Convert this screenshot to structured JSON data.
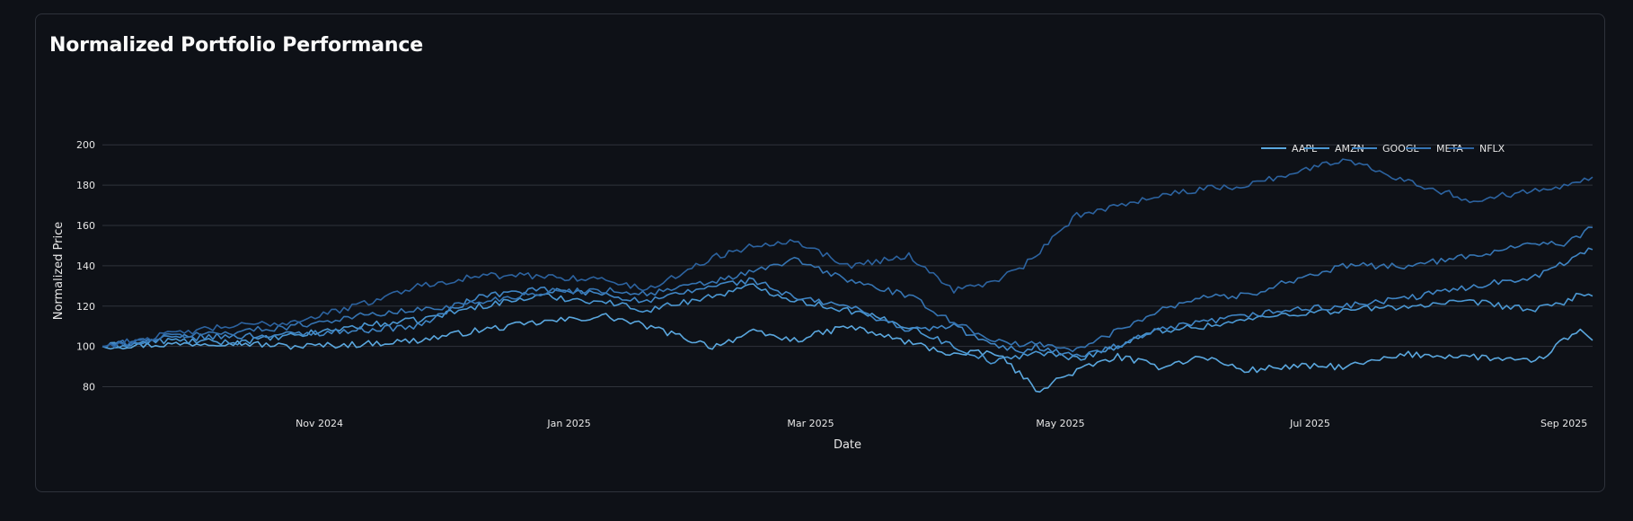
{
  "card": {
    "title": "Normalized Portfolio Performance"
  },
  "chart_data": {
    "type": "line",
    "xlabel": "Date",
    "ylabel": "Normalized Price",
    "x_range": [
      "2024-09-09",
      "2025-09-08"
    ],
    "ylim": [
      70,
      205
    ],
    "y_ticks": [
      80,
      100,
      120,
      140,
      160,
      180,
      200
    ],
    "x_ticks": [
      {
        "date": "2024-11-01",
        "label": "Nov 2024"
      },
      {
        "date": "2025-01-01",
        "label": "Jan 2025"
      },
      {
        "date": "2025-03-01",
        "label": "Mar 2025"
      },
      {
        "date": "2025-05-01",
        "label": "May 2025"
      },
      {
        "date": "2025-07-01",
        "label": "Jul 2025"
      },
      {
        "date": "2025-09-01",
        "label": "Sep 2025"
      }
    ],
    "grid": "horizontal",
    "legend": "top-right",
    "series": [
      {
        "name": "AAPL",
        "color": "#5aa7de",
        "points": [
          [
            "2024-09-09",
            100
          ],
          [
            "2024-09-25",
            101
          ],
          [
            "2024-10-10",
            102
          ],
          [
            "2024-10-25",
            100
          ],
          [
            "2024-11-10",
            101
          ],
          [
            "2024-11-25",
            103
          ],
          [
            "2024-12-10",
            108
          ],
          [
            "2024-12-25",
            112
          ],
          [
            "2025-01-10",
            115
          ],
          [
            "2025-01-20",
            110
          ],
          [
            "2025-02-05",
            100
          ],
          [
            "2025-02-15",
            107
          ],
          [
            "2025-02-25",
            103
          ],
          [
            "2025-03-10",
            110
          ],
          [
            "2025-03-25",
            102
          ],
          [
            "2025-04-05",
            96
          ],
          [
            "2025-04-15",
            97
          ],
          [
            "2025-04-22",
            85
          ],
          [
            "2025-04-25",
            78
          ],
          [
            "2025-05-05",
            88
          ],
          [
            "2025-05-15",
            95
          ],
          [
            "2025-05-25",
            90
          ],
          [
            "2025-06-05",
            95
          ],
          [
            "2025-06-15",
            88
          ],
          [
            "2025-06-25",
            90
          ],
          [
            "2025-07-10",
            90
          ],
          [
            "2025-07-25",
            96
          ],
          [
            "2025-08-10",
            95
          ],
          [
            "2025-08-25",
            92
          ],
          [
            "2025-09-01",
            103
          ],
          [
            "2025-09-05",
            108
          ],
          [
            "2025-09-08",
            103
          ]
        ]
      },
      {
        "name": "AMZN",
        "color": "#4a97d2",
        "points": [
          [
            "2024-09-09",
            100
          ],
          [
            "2024-09-25",
            103
          ],
          [
            "2024-10-10",
            102
          ],
          [
            "2024-10-25",
            105
          ],
          [
            "2024-11-10",
            110
          ],
          [
            "2024-11-25",
            113
          ],
          [
            "2024-12-10",
            120
          ],
          [
            "2024-12-25",
            125
          ],
          [
            "2025-01-10",
            122
          ],
          [
            "2025-01-20",
            118
          ],
          [
            "2025-02-05",
            125
          ],
          [
            "2025-02-15",
            130
          ],
          [
            "2025-02-25",
            123
          ],
          [
            "2025-03-10",
            118
          ],
          [
            "2025-03-25",
            110
          ],
          [
            "2025-04-05",
            100
          ],
          [
            "2025-04-15",
            92
          ],
          [
            "2025-04-22",
            96
          ],
          [
            "2025-04-25",
            97
          ],
          [
            "2025-05-05",
            94
          ],
          [
            "2025-05-15",
            100
          ],
          [
            "2025-05-25",
            108
          ],
          [
            "2025-06-05",
            110
          ],
          [
            "2025-06-15",
            113
          ],
          [
            "2025-06-25",
            116
          ],
          [
            "2025-07-10",
            118
          ],
          [
            "2025-07-25",
            120
          ],
          [
            "2025-08-10",
            122
          ],
          [
            "2025-08-25",
            118
          ],
          [
            "2025-09-01",
            122
          ],
          [
            "2025-09-05",
            126
          ],
          [
            "2025-09-08",
            125
          ]
        ]
      },
      {
        "name": "GOOGL",
        "color": "#3f85c4",
        "points": [
          [
            "2024-09-09",
            100
          ],
          [
            "2024-09-25",
            104
          ],
          [
            "2024-10-10",
            105
          ],
          [
            "2024-10-25",
            106
          ],
          [
            "2024-11-10",
            108
          ],
          [
            "2024-11-25",
            110
          ],
          [
            "2024-12-10",
            125
          ],
          [
            "2024-12-25",
            128
          ],
          [
            "2025-01-10",
            126
          ],
          [
            "2025-01-20",
            122
          ],
          [
            "2025-02-05",
            130
          ],
          [
            "2025-02-15",
            133
          ],
          [
            "2025-02-25",
            124
          ],
          [
            "2025-03-10",
            120
          ],
          [
            "2025-03-25",
            108
          ],
          [
            "2025-04-05",
            110
          ],
          [
            "2025-04-15",
            100
          ],
          [
            "2025-04-22",
            98
          ],
          [
            "2025-04-25",
            100
          ],
          [
            "2025-05-05",
            95
          ],
          [
            "2025-05-15",
            100
          ],
          [
            "2025-05-25",
            108
          ],
          [
            "2025-06-05",
            112
          ],
          [
            "2025-06-15",
            115
          ],
          [
            "2025-06-25",
            118
          ],
          [
            "2025-07-10",
            120
          ],
          [
            "2025-07-25",
            124
          ],
          [
            "2025-08-10",
            130
          ],
          [
            "2025-08-25",
            135
          ],
          [
            "2025-09-01",
            141
          ],
          [
            "2025-09-05",
            147
          ],
          [
            "2025-09-08",
            148
          ]
        ]
      },
      {
        "name": "META",
        "color": "#3574b2",
        "points": [
          [
            "2024-09-09",
            100
          ],
          [
            "2024-09-25",
            105
          ],
          [
            "2024-10-10",
            107
          ],
          [
            "2024-10-25",
            110
          ],
          [
            "2024-11-10",
            115
          ],
          [
            "2024-11-25",
            118
          ],
          [
            "2024-12-10",
            122
          ],
          [
            "2024-12-25",
            127
          ],
          [
            "2025-01-10",
            128
          ],
          [
            "2025-01-20",
            126
          ],
          [
            "2025-02-05",
            132
          ],
          [
            "2025-02-15",
            137
          ],
          [
            "2025-02-25",
            143
          ],
          [
            "2025-03-10",
            133
          ],
          [
            "2025-03-25",
            125
          ],
          [
            "2025-04-05",
            112
          ],
          [
            "2025-04-15",
            103
          ],
          [
            "2025-04-22",
            100
          ],
          [
            "2025-04-25",
            102
          ],
          [
            "2025-05-05",
            98
          ],
          [
            "2025-05-15",
            108
          ],
          [
            "2025-05-25",
            118
          ],
          [
            "2025-06-05",
            125
          ],
          [
            "2025-06-15",
            125
          ],
          [
            "2025-06-25",
            132
          ],
          [
            "2025-07-10",
            140
          ],
          [
            "2025-07-25",
            140
          ],
          [
            "2025-08-10",
            145
          ],
          [
            "2025-08-25",
            152
          ],
          [
            "2025-09-01",
            150
          ],
          [
            "2025-09-05",
            155
          ],
          [
            "2025-09-08",
            159
          ]
        ]
      },
      {
        "name": "NFLX",
        "color": "#2c63a0",
        "points": [
          [
            "2024-09-09",
            100
          ],
          [
            "2024-09-25",
            106
          ],
          [
            "2024-10-10",
            110
          ],
          [
            "2024-10-25",
            112
          ],
          [
            "2024-11-10",
            120
          ],
          [
            "2024-11-25",
            130
          ],
          [
            "2024-12-10",
            135
          ],
          [
            "2024-12-25",
            135
          ],
          [
            "2025-01-10",
            133
          ],
          [
            "2025-01-20",
            128
          ],
          [
            "2025-02-05",
            144
          ],
          [
            "2025-02-15",
            150
          ],
          [
            "2025-02-25",
            153
          ],
          [
            "2025-03-10",
            140
          ],
          [
            "2025-03-25",
            145
          ],
          [
            "2025-04-05",
            128
          ],
          [
            "2025-04-15",
            132
          ],
          [
            "2025-04-22",
            140
          ],
          [
            "2025-04-25",
            145
          ],
          [
            "2025-05-05",
            165
          ],
          [
            "2025-05-15",
            170
          ],
          [
            "2025-05-25",
            175
          ],
          [
            "2025-06-05",
            178
          ],
          [
            "2025-06-15",
            180
          ],
          [
            "2025-06-25",
            185
          ],
          [
            "2025-07-10",
            193
          ],
          [
            "2025-07-25",
            182
          ],
          [
            "2025-08-10",
            172
          ],
          [
            "2025-08-25",
            178
          ],
          [
            "2025-09-01",
            180
          ],
          [
            "2025-09-05",
            183
          ],
          [
            "2025-09-08",
            184
          ]
        ]
      }
    ]
  }
}
